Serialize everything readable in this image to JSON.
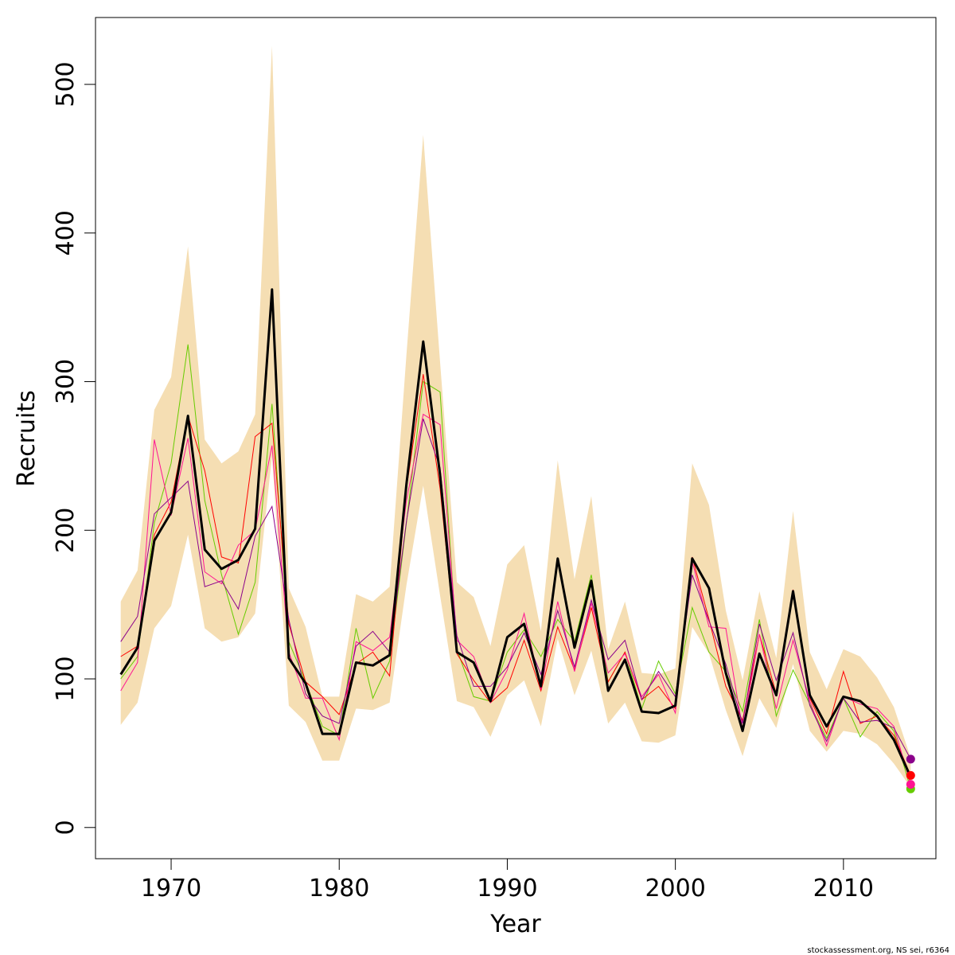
{
  "chart_data": {
    "type": "line",
    "xlabel": "Year",
    "ylabel": "Recruits",
    "xlim": [
      1965.5,
      2015.5
    ],
    "ylim": [
      -21,
      545
    ],
    "x_ticks": [
      1970,
      1980,
      1990,
      2000,
      2010
    ],
    "y_ticks": [
      0,
      100,
      200,
      300,
      400,
      500
    ],
    "grid": false,
    "legend": "none",
    "footnote": "stockassessment.org, NS sei, r6364",
    "colors": {
      "band": "#f5deb3",
      "main": "#000000",
      "retro_green": "#66cc00",
      "retro_red": "#ff0000",
      "retro_pink": "#ff1493",
      "retro_purple": "#8b008b"
    },
    "x": [
      1967,
      1968,
      1969,
      1970,
      1971,
      1972,
      1973,
      1974,
      1975,
      1976,
      1977,
      1978,
      1979,
      1980,
      1981,
      1982,
      1983,
      1984,
      1985,
      1986,
      1987,
      1988,
      1989,
      1990,
      1991,
      1992,
      1993,
      1994,
      1995,
      1996,
      1997,
      1998,
      1999,
      2000,
      2001,
      2002,
      2003,
      2004,
      2005,
      2006,
      2007,
      2008,
      2009,
      2010,
      2011,
      2012,
      2013,
      2014
    ],
    "confidence_band": {
      "upper": [
        152,
        173,
        281,
        303,
        391,
        261,
        245,
        253,
        278,
        526,
        161,
        135,
        88,
        88,
        157,
        152,
        162,
        318,
        466,
        313,
        165,
        155,
        122,
        177,
        190,
        132,
        247,
        167,
        223,
        120,
        152,
        104,
        103,
        107,
        245,
        217,
        146,
        99,
        159,
        114,
        213,
        118,
        93,
        120,
        115,
        101,
        81,
        47
      ],
      "lower": [
        69,
        84,
        134,
        149,
        197,
        134,
        125,
        128,
        144,
        250,
        82,
        71,
        45,
        45,
        80,
        79,
        84,
        163,
        230,
        156,
        85,
        81,
        61,
        89,
        99,
        68,
        127,
        89,
        119,
        70,
        84,
        58,
        57,
        62,
        135,
        117,
        79,
        48,
        87,
        67,
        110,
        65,
        51,
        65,
        63,
        56,
        43,
        27
      ]
    },
    "series": [
      {
        "name": "",
        "values": [
          103,
          121,
          193,
          212,
          277,
          187,
          174,
          180,
          201,
          362,
          114,
          97,
          63,
          63,
          111,
          109,
          116,
          231,
          327,
          237,
          118,
          111,
          85,
          128,
          137,
          95,
          181,
          121,
          166,
          92,
          113,
          78,
          77,
          82,
          181,
          161,
          104,
          65,
          117,
          89,
          159,
          89,
          68,
          88,
          85,
          75,
          59,
          34
        ]
      },
      {
        "name": "",
        "values": [
          100,
          115,
          205,
          245,
          325,
          220,
          170,
          130,
          165,
          285,
          125,
          98,
          68,
          62,
          134,
          87,
          112,
          205,
          300,
          293,
          120,
          88,
          85,
          118,
          133,
          115,
          140,
          125,
          170,
          98,
          118,
          80,
          112,
          90,
          148,
          118,
          105,
          78,
          140,
          75,
          106,
          83,
          60,
          87,
          61,
          78,
          65,
          26
        ]
      },
      {
        "name": "",
        "values": [
          115,
          122,
          197,
          219,
          277,
          240,
          182,
          178,
          263,
          272,
          137,
          98,
          88,
          76,
          110,
          118,
          102,
          228,
          305,
          228,
          117,
          99,
          84,
          94,
          126,
          92,
          135,
          106,
          148,
          98,
          118,
          86,
          95,
          80,
          182,
          140,
          95,
          72,
          130,
          90,
          160,
          87,
          63,
          105,
          70,
          75,
          62,
          35
        ]
      },
      {
        "name": "",
        "values": [
          92,
          111,
          261,
          210,
          262,
          172,
          164,
          190,
          200,
          257,
          118,
          87,
          87,
          59,
          125,
          119,
          128,
          220,
          278,
          271,
          126,
          115,
          84,
          106,
          144,
          93,
          152,
          105,
          151,
          104,
          117,
          88,
          103,
          77,
          179,
          135,
          134,
          66,
          130,
          80,
          126,
          85,
          55,
          88,
          83,
          80,
          68,
          29
        ]
      },
      {
        "name": "",
        "values": [
          125,
          142,
          211,
          222,
          233,
          162,
          166,
          147,
          196,
          216,
          140,
          90,
          75,
          70,
          122,
          132,
          118,
          206,
          275,
          242,
          129,
          95,
          95,
          108,
          131,
          103,
          146,
          108,
          153,
          113,
          126,
          86,
          105,
          88,
          170,
          139,
          110,
          70,
          137,
          99,
          131,
          82,
          58,
          87,
          71,
          72,
          67,
          46
        ]
      }
    ],
    "end_points": {
      "year": 2014,
      "values": [
        26,
        35,
        29,
        46
      ]
    }
  }
}
